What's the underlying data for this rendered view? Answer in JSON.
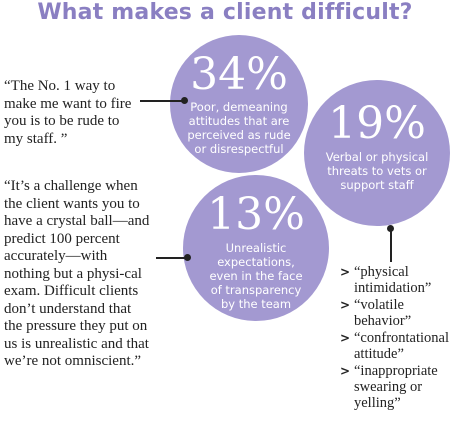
{
  "title": "What makes a client difficult?",
  "stats": [
    {
      "percent": "34%",
      "description": "Poor, demeaning attitudes that are perceived as rude or disrespectful"
    },
    {
      "percent": "19%",
      "description": "Verbal or physical threats to vets or support staff"
    },
    {
      "percent": "13%",
      "description": "Unrealistic expectations, even in the face of transparency by the team"
    }
  ],
  "quotes": [
    "“The No. 1 way to make me want to fire you is to be rude to my staff. ”",
    "“It’s a challenge when the client wants you to have a crystal ball—and predict 100 percent accurately—with nothing but a physi-cal exam. Difficult clients don’t understand that the pressure they put on us is unrealistic and that we’re not omniscient.”"
  ],
  "threat_examples": {
    "arrow": ">",
    "items": [
      "“physical intimidation”",
      "“volatile behavior”",
      "“confrontational attitude”",
      "“inappropriate swearing or yelling”"
    ]
  },
  "colors": {
    "title": "#8a7fc2",
    "circle_fill": "#a399d1",
    "circle_text": "#ffffff",
    "body_text": "#222222"
  }
}
